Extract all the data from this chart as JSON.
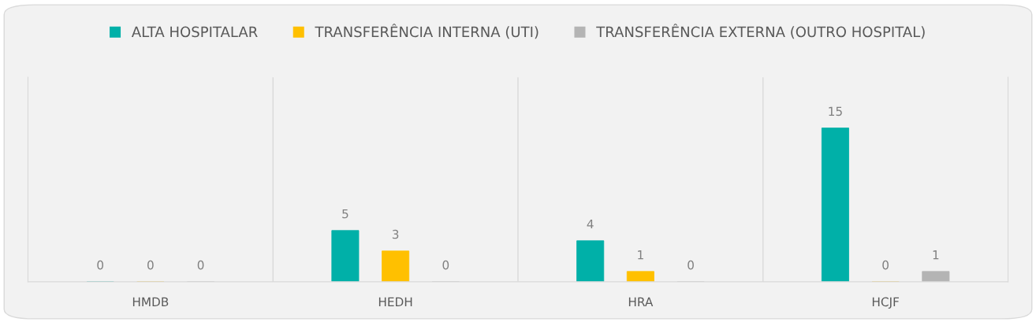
{
  "chart_data": {
    "type": "bar",
    "categories": [
      "HMDB",
      "HEDH",
      "HRA",
      "HCJF"
    ],
    "series": [
      {
        "name": "ALTA HOSPITALAR",
        "color": "#00b0a8",
        "values": [
          0,
          5,
          4,
          15
        ]
      },
      {
        "name": "TRANSFERÊNCIA INTERNA (UTI)",
        "color": "#ffc000",
        "values": [
          0,
          3,
          1,
          0
        ]
      },
      {
        "name": "TRANSFERÊNCIA EXTERNA (OUTRO HOSPITAL)",
        "color": "#b4b4b4",
        "values": [
          0,
          0,
          0,
          1
        ]
      }
    ],
    "data_labels": true,
    "grid": "x",
    "legend": "top"
  }
}
